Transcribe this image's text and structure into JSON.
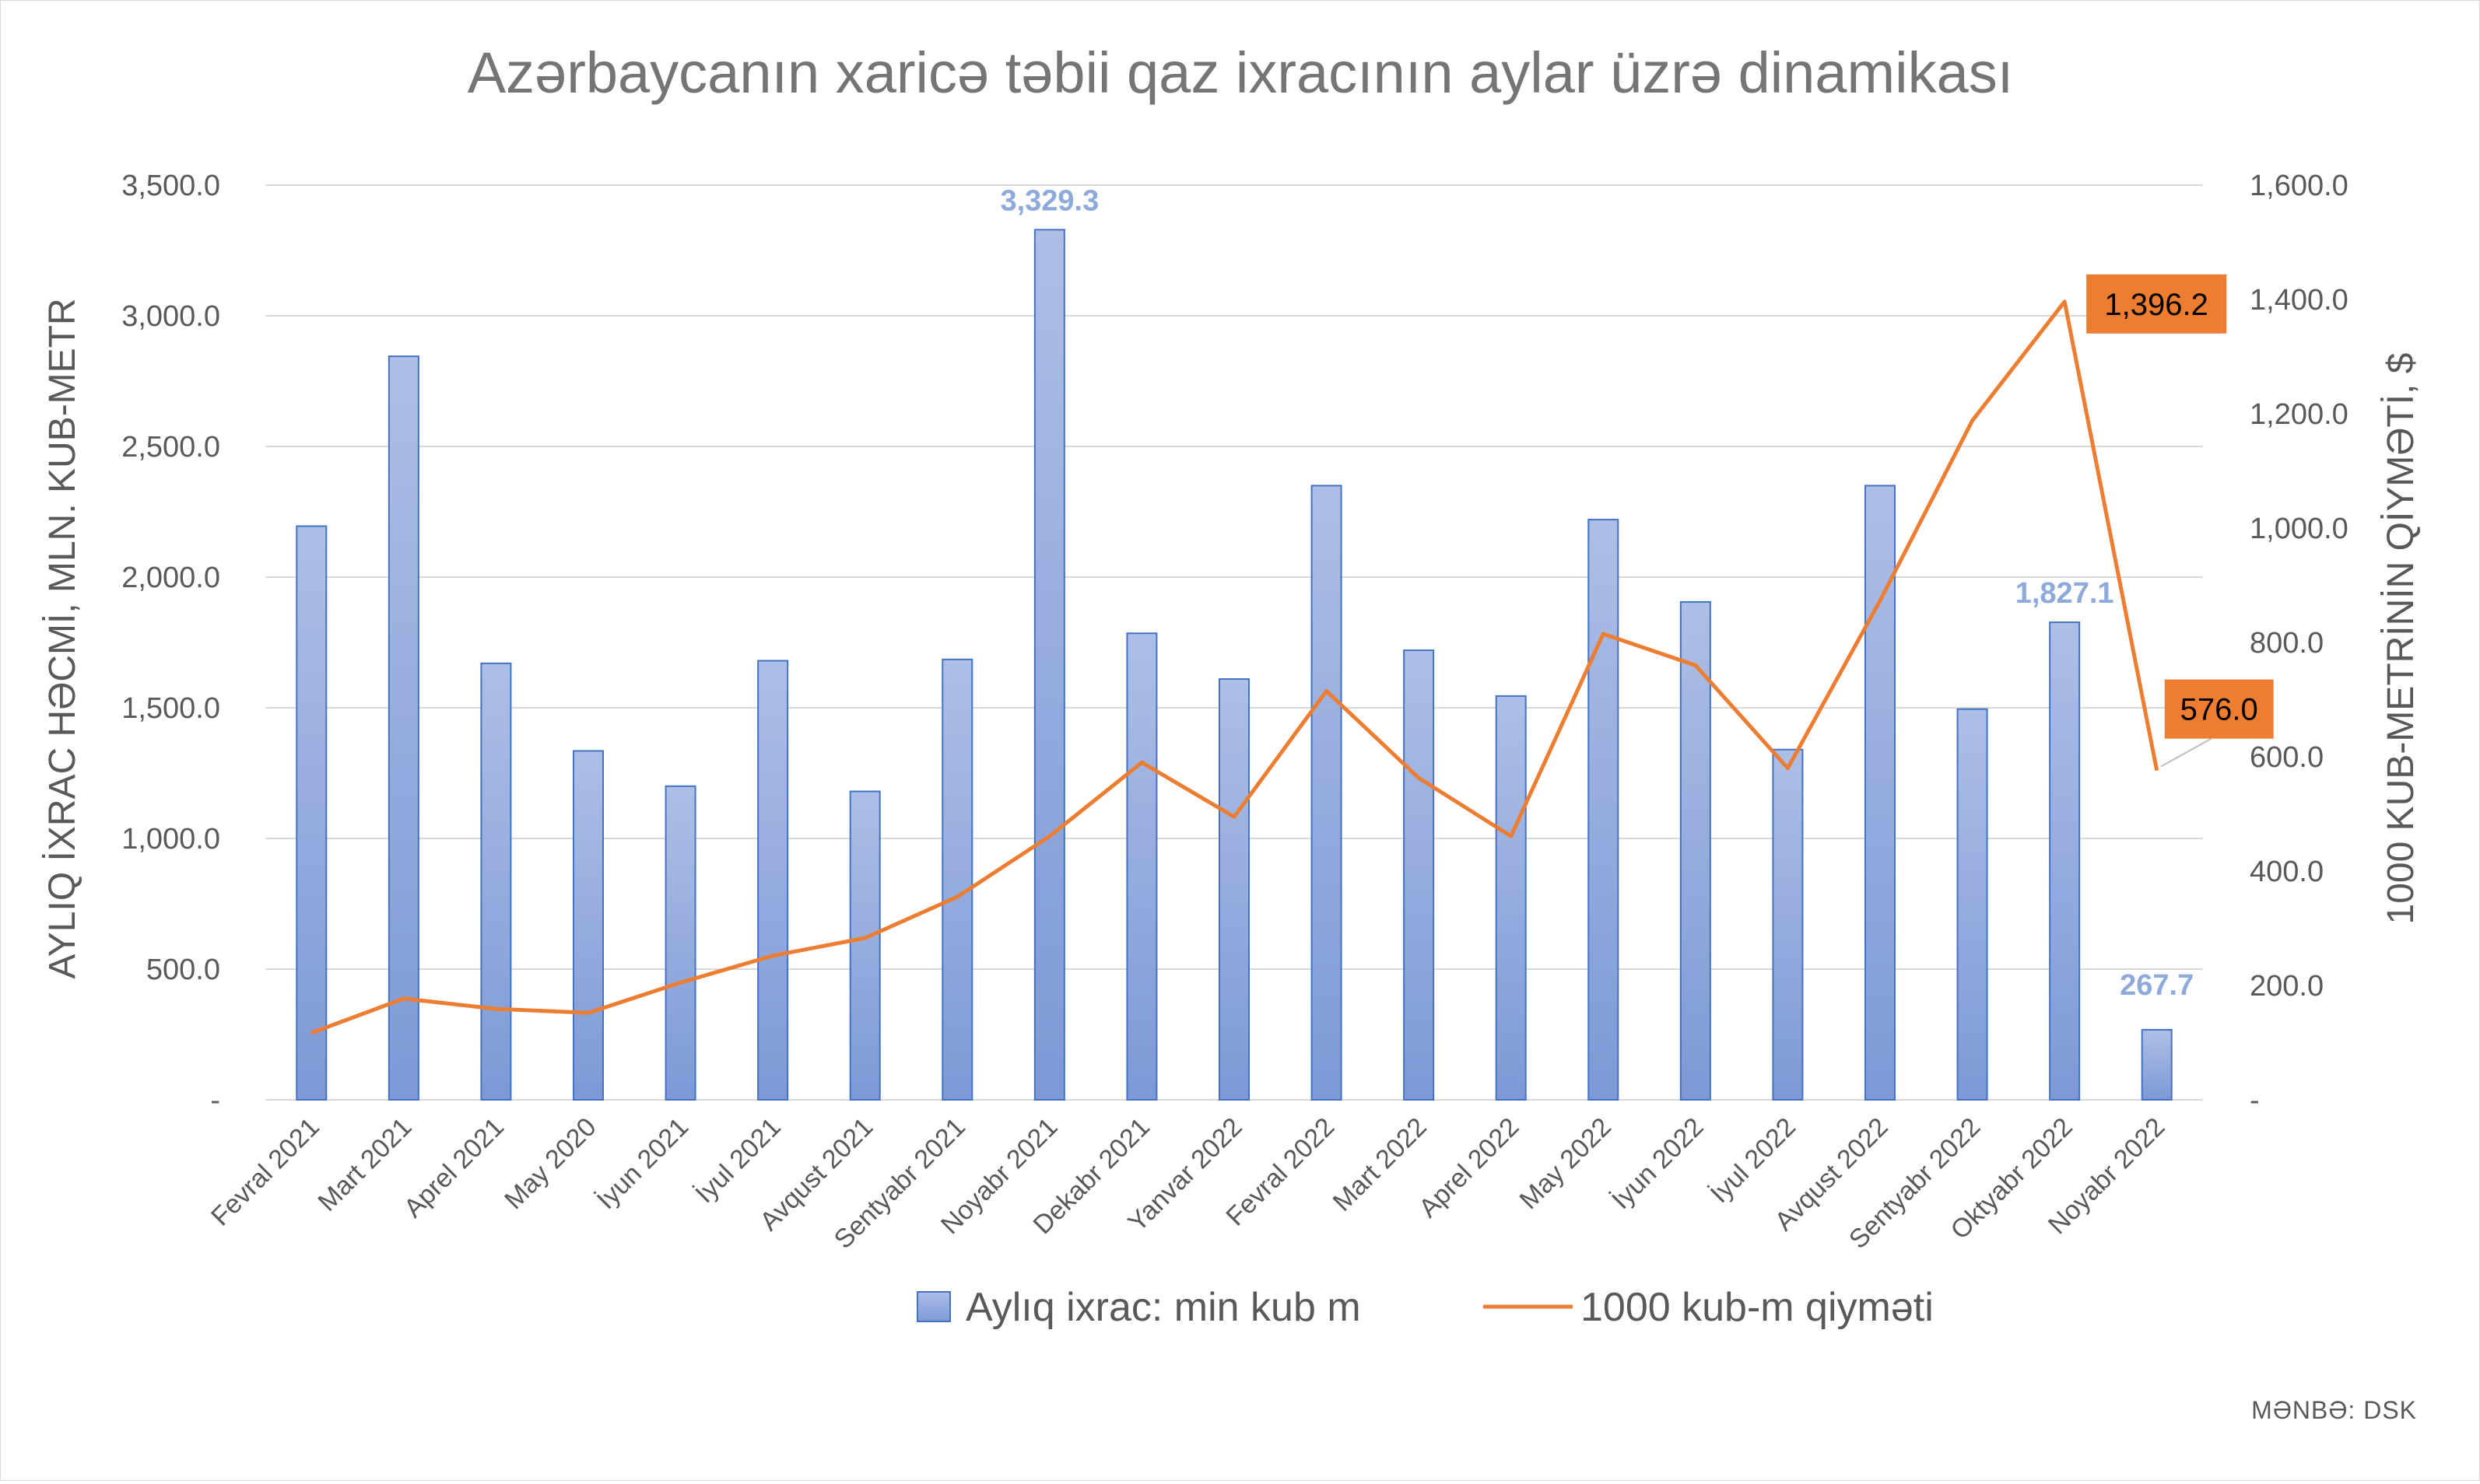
{
  "chart_data": {
    "type": "bar",
    "title": "Azərbaycanın xaricə təbii qaz ixracının aylar üzrə dinamikası",
    "ylabel_left": "AYLIQ İXRAC HƏCMİ, MLN. KUB-METR",
    "ylabel_right": "1000 KUB-METRİNİN QİYMƏTİ, $",
    "source": "MƏNBƏ: DSK",
    "categories": [
      "Fevral 2021",
      "Mart 2021",
      "Aprel 2021",
      "May 2020",
      "İyun 2021",
      "İyul 2021",
      "Avqust 2021",
      "Sentyabr 2021",
      "Noyabr 2021",
      "Dekabr 2021",
      "Yanvar 2022",
      "Fevral 2022",
      "Mart 2022",
      "Aprel 2022",
      "May 2022",
      "İyun 2022",
      "İyul 2022",
      "Avqust 2022",
      "Sentyabr 2022",
      "Oktyabr 2022",
      "Noyabr 2022"
    ],
    "ylim_left": [
      0,
      3500
    ],
    "ylim_right": [
      0,
      1600
    ],
    "left_ticks": [
      "-",
      "500.0",
      "1,000.0",
      "1,500.0",
      "2,000.0",
      "2,500.0",
      "3,000.0",
      "3,500.0"
    ],
    "right_ticks": [
      "-",
      "200.0",
      "400.0",
      "600.0",
      "800.0",
      "1,000.0",
      "1,200.0",
      "1,400.0",
      "1,600.0"
    ],
    "grid": true,
    "legend_position": "bottom",
    "series": [
      {
        "name": "Aylıq ixrac: min kub m",
        "type": "bar",
        "axis": "left",
        "color": "#8faadc",
        "values": [
          2195,
          2845,
          1670,
          1335,
          1200,
          1680,
          1180,
          1685,
          3329.3,
          1785,
          1610,
          2350,
          1720,
          1545,
          2220,
          1905,
          1340,
          2350,
          1495,
          1827.1,
          267.7
        ],
        "data_labels": [
          {
            "index": 8,
            "text": "3,329.3"
          },
          {
            "index": 19,
            "text": "1,827.1"
          },
          {
            "index": 20,
            "text": "267.7"
          }
        ]
      },
      {
        "name": "1000 kub-m qiyməti",
        "type": "line",
        "axis": "right",
        "color": "#ed7d31",
        "values": [
          117,
          177,
          159,
          152,
          205,
          252,
          283,
          355,
          461,
          590,
          495,
          715,
          563,
          461,
          815,
          760,
          580,
          873,
          1188,
          1396.2,
          576.0
        ],
        "data_labels": [
          {
            "index": 19,
            "text": "1,396.2"
          },
          {
            "index": 20,
            "text": "576.0"
          }
        ]
      }
    ]
  }
}
